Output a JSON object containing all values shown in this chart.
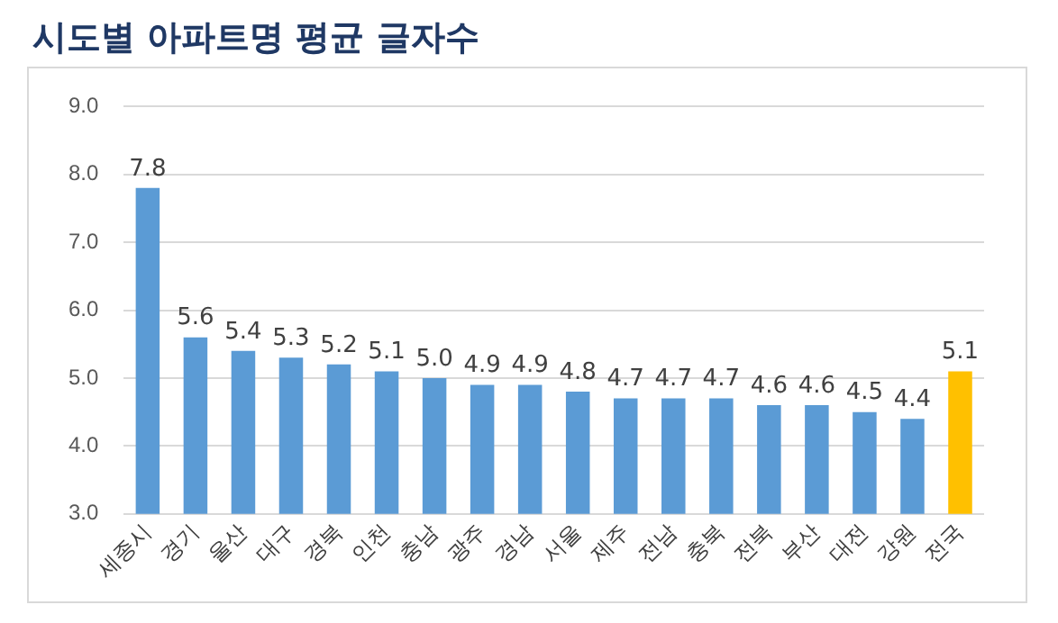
{
  "chart_data": {
    "type": "bar",
    "title": "시도별 아파트명 평균 글자수",
    "categories": [
      "세종시",
      "경기",
      "울산",
      "대구",
      "경북",
      "인천",
      "충남",
      "광주",
      "경남",
      "서울",
      "제주",
      "전남",
      "충북",
      "전북",
      "부산",
      "대전",
      "강원",
      "전국"
    ],
    "values": [
      7.8,
      5.6,
      5.4,
      5.3,
      5.2,
      5.1,
      5.0,
      4.9,
      4.9,
      4.8,
      4.7,
      4.7,
      4.7,
      4.6,
      4.6,
      4.5,
      4.4,
      5.1
    ],
    "colors": [
      "#5b9bd5",
      "#5b9bd5",
      "#5b9bd5",
      "#5b9bd5",
      "#5b9bd5",
      "#5b9bd5",
      "#5b9bd5",
      "#5b9bd5",
      "#5b9bd5",
      "#5b9bd5",
      "#5b9bd5",
      "#5b9bd5",
      "#5b9bd5",
      "#5b9bd5",
      "#5b9bd5",
      "#5b9bd5",
      "#5b9bd5",
      "#ffc000"
    ],
    "ylim": [
      3,
      9
    ],
    "yticks": [
      {
        "value": 3,
        "label": "3.0"
      },
      {
        "value": 4,
        "label": "4.0"
      },
      {
        "value": 5,
        "label": "5.0"
      },
      {
        "value": 6,
        "label": "6.0"
      },
      {
        "value": 7,
        "label": "7.0"
      },
      {
        "value": 8,
        "label": "8.0"
      },
      {
        "value": 9,
        "label": "9.0"
      }
    ],
    "value_labels": [
      "7.8",
      "5.6",
      "5.4",
      "5.3",
      "5.2",
      "5.1",
      "5.0",
      "4.9",
      "4.9",
      "4.8",
      "4.7",
      "4.7",
      "4.7",
      "4.6",
      "4.6",
      "4.5",
      "4.4",
      "5.1"
    ],
    "grid": "y",
    "legend": false
  }
}
